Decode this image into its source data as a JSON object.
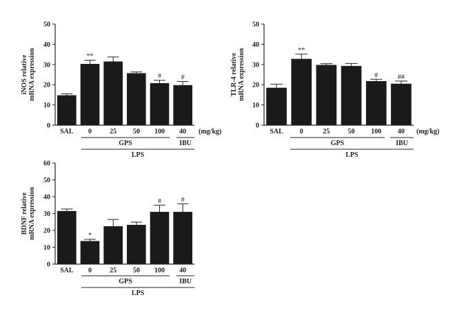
{
  "unit": "(mg/kg)",
  "groups": {
    "gps": "GPS",
    "ibu": "IBU",
    "lps": "LPS"
  },
  "chart_data": [
    {
      "type": "bar",
      "ylabel_lines": [
        "iNOS relative",
        "mRNA expression"
      ],
      "ylim": [
        0,
        50
      ],
      "yticks": [
        0,
        10,
        20,
        30,
        40,
        50
      ],
      "categories": [
        "SAL",
        "0",
        "25",
        "50",
        "100",
        "40"
      ],
      "values": [
        14.8,
        30.3,
        31.5,
        25.7,
        20.8,
        19.8
      ],
      "errors": [
        0.7,
        1.8,
        2.2,
        0.6,
        1.4,
        1.8
      ],
      "significance": [
        "",
        "**",
        "",
        "",
        "#",
        "#"
      ],
      "bar_color": "#1a1a1a"
    },
    {
      "type": "bar",
      "ylabel_lines": [
        "TLR-4 relative",
        "mRNA expression"
      ],
      "ylim": [
        0,
        50
      ],
      "yticks": [
        0,
        10,
        20,
        30,
        40,
        50
      ],
      "categories": [
        "SAL",
        "0",
        "25",
        "50",
        "100",
        "40"
      ],
      "values": [
        18.5,
        32.8,
        29.8,
        29.3,
        21.8,
        20.5
      ],
      "errors": [
        1.8,
        2.3,
        0.6,
        1.2,
        0.9,
        1.3
      ],
      "significance": [
        "",
        "**",
        "",
        "",
        "#",
        "##"
      ],
      "bar_color": "#1a1a1a"
    },
    {
      "type": "bar",
      "ylabel_lines": [
        "BDNF relative",
        "mRNA expression"
      ],
      "ylim": [
        0,
        60
      ],
      "yticks": [
        0,
        10,
        20,
        30,
        40,
        50,
        60
      ],
      "categories": [
        "SAL",
        "0",
        "25",
        "50",
        "100",
        "40"
      ],
      "values": [
        31.5,
        13.7,
        22.5,
        23.3,
        31.0,
        31.0
      ],
      "errors": [
        1.2,
        1.0,
        4.0,
        1.6,
        4.0,
        4.8
      ],
      "significance": [
        "",
        "*",
        "",
        "",
        "#",
        "#"
      ],
      "bar_color": "#1a1a1a"
    }
  ]
}
